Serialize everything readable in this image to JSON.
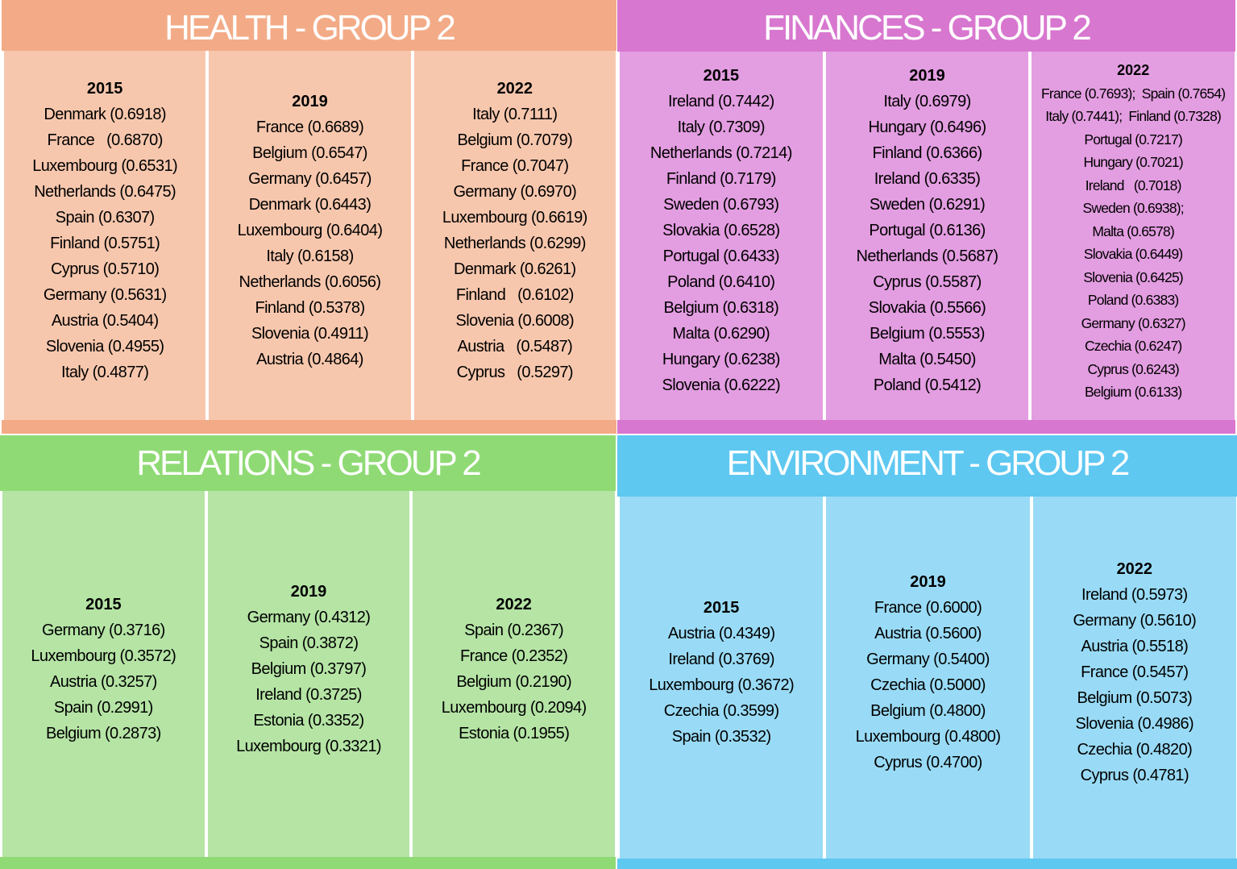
{
  "panels": {
    "health": {
      "title": "HEALTH - GROUP 2",
      "columns": [
        {
          "year": "2015",
          "items": [
            "Denmark (0.6918)",
            "France   (0.6870)",
            "Luxembourg (0.6531)",
            "Netherlands (0.6475)",
            "Spain (0.6307)",
            "Finland (0.5751)",
            "Cyprus (0.5710)",
            "Germany (0.5631)",
            "Austria (0.5404)",
            "Slovenia (0.4955)",
            "Italy (0.4877)"
          ]
        },
        {
          "year": "2019",
          "items": [
            "France (0.6689)",
            "Belgium (0.6547)",
            "Germany (0.6457)",
            "Denmark (0.6443)",
            "Luxembourg (0.6404)",
            "Italy (0.6158)",
            "Netherlands (0.6056)",
            "Finland (0.5378)",
            "Slovenia (0.4911)",
            "Austria (0.4864)"
          ]
        },
        {
          "year": "2022",
          "items": [
            "Italy (0.7111)",
            "Belgium (0.7079)",
            "France (0.7047)",
            "Germany (0.6970)",
            "Luxembourg (0.6619)",
            "Netherlands (0.6299)",
            "Denmark (0.6261)",
            "Finland   (0.6102)",
            "Slovenia (0.6008)",
            "Austria   (0.5487)",
            "Cyprus   (0.5297)"
          ]
        }
      ]
    },
    "finances": {
      "title": "FINANCES - GROUP 2",
      "columns": [
        {
          "year": "2015",
          "items": [
            "Ireland (0.7442)",
            "Italy (0.7309)",
            "Netherlands (0.7214)",
            "Finland (0.7179)",
            "Sweden (0.6793)",
            "Slovakia (0.6528)",
            "Portugal (0.6433)",
            "Poland (0.6410)",
            "Belgium (0.6318)",
            "Malta (0.6290)",
            "Hungary (0.6238)",
            "Slovenia (0.6222)"
          ]
        },
        {
          "year": "2019",
          "items": [
            "Italy (0.6979)",
            "Hungary (0.6496)",
            "Finland (0.6366)",
            "Ireland (0.6335)",
            "Sweden (0.6291)",
            "Portugal (0.6136)",
            "Netherlands (0.5687)",
            "Cyprus (0.5587)",
            "Slovakia (0.5566)",
            "Belgium (0.5553)",
            "Malta (0.5450)",
            "Poland (0.5412)"
          ]
        },
        {
          "year": "2022",
          "items": [
            "France (0.7693);  Spain (0.7654)",
            "Italy (0.7441);  Finland (0.7328)",
            "Portugal (0.7217)",
            "Hungary (0.7021)",
            "Ireland   (0.7018)",
            "Sweden (0.6938);",
            "Malta (0.6578)",
            "Slovakia (0.6449)",
            "Slovenia (0.6425)",
            "Poland (0.6383)",
            "Germany (0.6327)",
            "Czechia (0.6247)",
            "Cyprus (0.6243)",
            "Belgium (0.6133)"
          ]
        }
      ]
    },
    "relations": {
      "title": "RELATIONS - GROUP 2",
      "columns": [
        {
          "year": "2015",
          "items": [
            "Germany (0.3716)",
            "Luxembourg (0.3572)",
            "Austria (0.3257)",
            "Spain (0.2991)",
            "Belgium (0.2873)"
          ]
        },
        {
          "year": "2019",
          "items": [
            "Germany (0.4312)",
            "Spain (0.3872)",
            "Belgium (0.3797)",
            "Ireland (0.3725)",
            "Estonia (0.3352)",
            "Luxembourg (0.3321)"
          ]
        },
        {
          "year": "2022",
          "items": [
            "Spain (0.2367)",
            "France (0.2352)",
            "Belgium (0.2190)",
            "Luxembourg (0.2094)",
            "Estonia (0.1955)"
          ]
        }
      ]
    },
    "environment": {
      "title": "ENVIRONMENT - GROUP 2",
      "columns": [
        {
          "year": "2015",
          "items": [
            "Austria (0.4349)",
            "Ireland (0.3769)",
            "Luxembourg (0.3672)",
            "Czechia (0.3599)",
            "Spain (0.3532)"
          ]
        },
        {
          "year": "2019",
          "items": [
            "France (0.6000)",
            "Austria (0.5600)",
            "Germany (0.5400)",
            "Czechia (0.5000)",
            "Belgium (0.4800)",
            "Luxembourg (0.4800)",
            "Cyprus (0.4700)"
          ]
        },
        {
          "year": "2022",
          "items": [
            "Ireland (0.5973)",
            "Germany (0.5610)",
            "Austria (0.5518)",
            "France (0.5457)",
            "Belgium (0.5073)",
            "Slovenia (0.4986)",
            "Czechia (0.4820)",
            "Cyprus (0.4781)"
          ]
        }
      ]
    }
  }
}
